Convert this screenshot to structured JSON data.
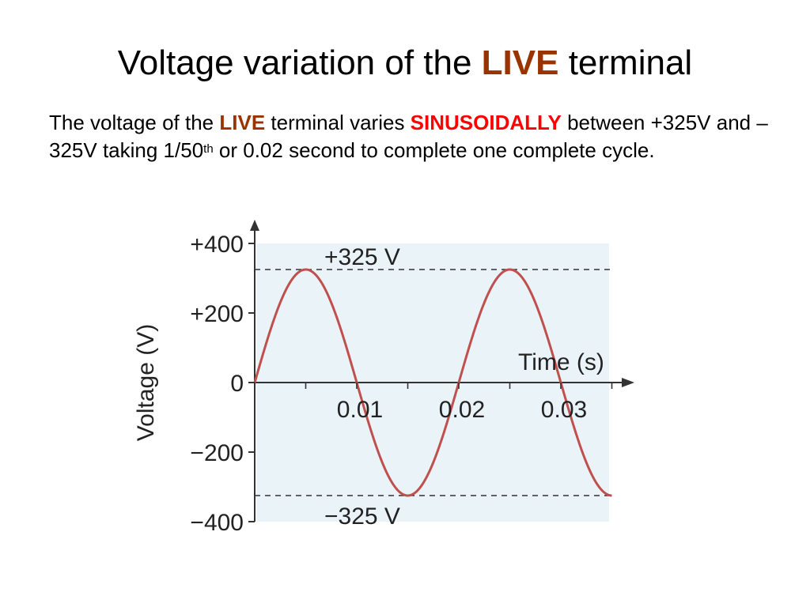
{
  "slide": {
    "title_part1": "Voltage variation of the ",
    "title_live": "LIVE",
    "title_part2": " terminal",
    "body_part1": "The voltage of the ",
    "body_live": "LIVE",
    "body_part2": " terminal varies ",
    "body_sinus": "SINUSOIDALLY",
    "body_part3": " between +325V and – 325V taking 1/50",
    "body_sup": "th",
    "body_part4": " or 0.02 second to complete one complete cycle.",
    "colors": {
      "live": "#993300",
      "sinusoidally": "#ff0000"
    }
  },
  "chart_data": {
    "type": "line",
    "function": "325*sin(2*pi*50*t)",
    "x": [
      0,
      0.005,
      0.01,
      0.015,
      0.02,
      0.025,
      0.03,
      0.035
    ],
    "series": [
      {
        "values": [
          0,
          325,
          0,
          -325,
          0,
          325,
          0,
          -325
        ],
        "color": "#c0504d"
      }
    ],
    "xlabel": "Time (s)",
    "ylabel": "Voltage (V)",
    "xlim": [
      0,
      0.035
    ],
    "ylim": [
      -400,
      400
    ],
    "x_ticks": [
      0.01,
      0.02,
      0.03
    ],
    "x_tick_labels": [
      "0.01",
      "0.02",
      "0.03"
    ],
    "y_ticks": [
      400,
      200,
      0,
      -200,
      -400
    ],
    "y_tick_labels": [
      "+400",
      "+200",
      "0",
      "−200",
      "−400"
    ],
    "reference_lines": [
      {
        "value": 325,
        "label": "+325 V"
      },
      {
        "value": -325,
        "label": "−325 V"
      }
    ],
    "plot_background": "#eaf4f8",
    "grid": false
  }
}
